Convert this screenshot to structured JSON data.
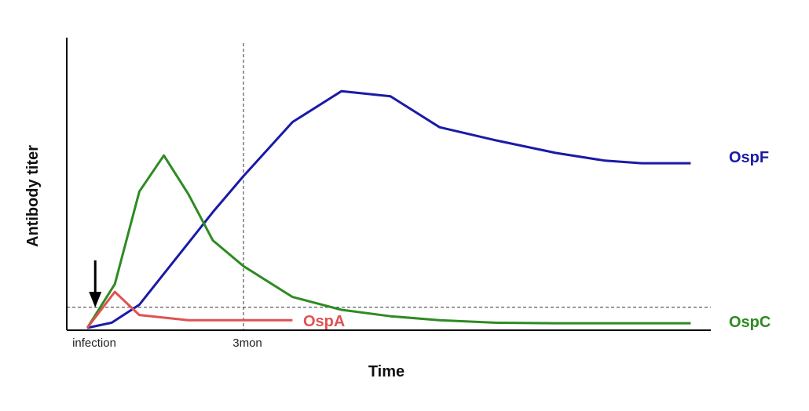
{
  "chart_data": {
    "type": "line",
    "title": "",
    "xlabel": "Time",
    "ylabel": "Antibody titer",
    "xlim": [
      0,
      100
    ],
    "ylim": [
      0,
      100
    ],
    "grid": false,
    "x_tick_labels": [
      {
        "x": 0,
        "label": "infection"
      },
      {
        "x": 25,
        "label": "3mon"
      }
    ],
    "reference_lines": {
      "vertical_x": 25,
      "horizontal_y": 8
    },
    "infection_arrow": {
      "x": 0.8
    },
    "colors": {
      "OspF": "#1a1aa8",
      "OspC": "#2e8b22",
      "OspA": "#e05252"
    },
    "series": [
      {
        "name": "OspF",
        "x": [
          -0.5,
          3.5,
          8,
          12,
          16,
          20,
          25,
          33,
          41,
          49,
          57,
          66,
          76,
          84,
          90,
          98
        ],
        "y": [
          0,
          2,
          9,
          21,
          33,
          45,
          59,
          80,
          92,
          90,
          78,
          73,
          68,
          65,
          64,
          64
        ]
      },
      {
        "name": "OspC",
        "x": [
          -0.5,
          4,
          8,
          12,
          16,
          20,
          25,
          33,
          41,
          49,
          57,
          66,
          76,
          84,
          90,
          98
        ],
        "y": [
          0,
          17,
          53,
          67,
          52,
          34,
          24,
          12,
          7,
          4.5,
          3,
          2,
          1.8,
          1.8,
          1.8,
          1.8
        ]
      },
      {
        "name": "OspA",
        "x": [
          -0.5,
          4,
          8,
          16,
          25,
          33
        ],
        "y": [
          0,
          14,
          5,
          3,
          3,
          3
        ]
      }
    ]
  }
}
